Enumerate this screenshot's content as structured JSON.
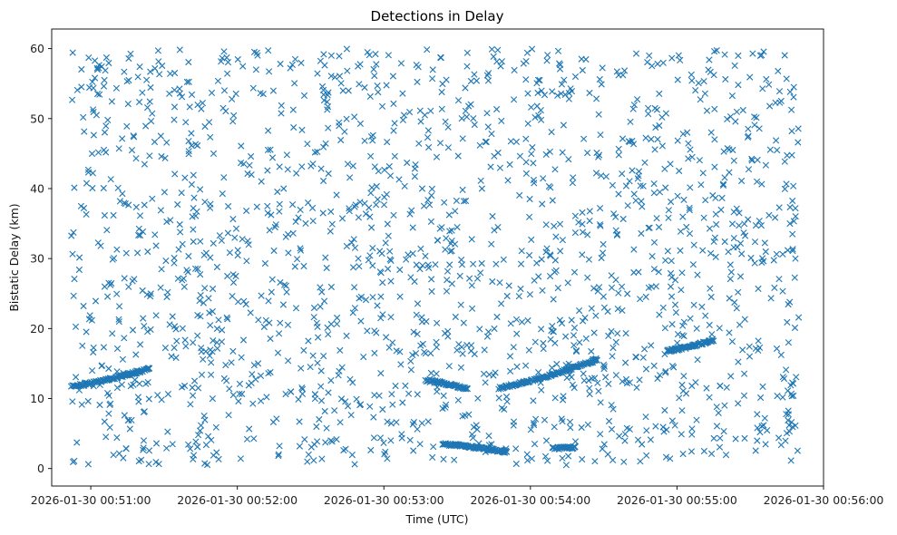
{
  "chart_data": {
    "type": "scatter",
    "title": "Detections in Delay",
    "xlabel": "Time (UTC)",
    "ylabel": "Bistatic Delay (km)",
    "marker": "x",
    "color": "#1f77b4",
    "grid": false,
    "legend": "none",
    "xlim": [
      "2026-01-30 00:50:44",
      "2026-01-30 00:56:00"
    ],
    "ylim": [
      -2.5,
      62.8
    ],
    "xticks": [
      "2026-01-30 00:51:00",
      "2026-01-30 00:52:00",
      "2026-01-30 00:53:00",
      "2026-01-30 00:54:00",
      "2026-01-30 00:55:00",
      "2026-01-30 00:56:00"
    ],
    "yticks": [
      0,
      10,
      20,
      30,
      40,
      50,
      60
    ],
    "data_time_range": [
      "2026-01-30 00:50:52",
      "2026-01-30 00:55:50"
    ],
    "clutter_delay_range_km": [
      0.5,
      60
    ],
    "clutter_point_count": 1750,
    "tracks": [
      {
        "start": "2026-01-30 00:50:52",
        "end": "2026-01-30 00:51:24",
        "delay_start_km": 11.7,
        "delay_end_km": 14.3
      },
      {
        "start": "2026-01-30 00:53:17",
        "end": "2026-01-30 00:53:34",
        "delay_start_km": 12.6,
        "delay_end_km": 11.4
      },
      {
        "start": "2026-01-30 00:53:24",
        "end": "2026-01-30 00:53:50",
        "delay_start_km": 3.5,
        "delay_end_km": 2.4
      },
      {
        "start": "2026-01-30 00:53:47",
        "end": "2026-01-30 00:54:27",
        "delay_start_km": 11.5,
        "delay_end_km": 15.6
      },
      {
        "start": "2026-01-30 00:54:56",
        "end": "2026-01-30 00:55:15",
        "delay_start_km": 16.8,
        "delay_end_km": 18.4
      },
      {
        "start": "2026-01-30 00:54:09",
        "end": "2026-01-30 00:54:18",
        "delay_start_km": 2.9,
        "delay_end_km": 3.0
      }
    ]
  }
}
